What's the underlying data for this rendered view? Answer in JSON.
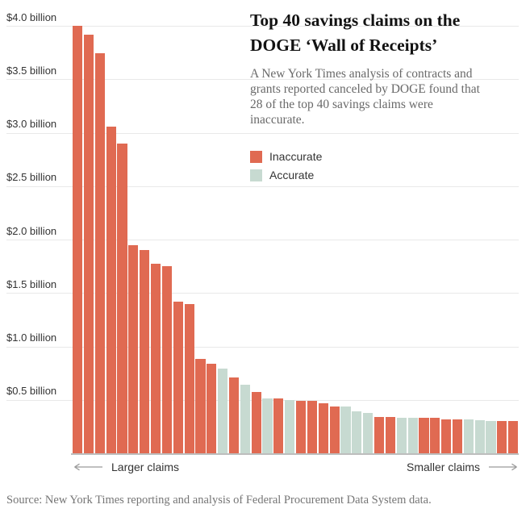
{
  "header": {
    "title_lines": [
      "Top 40 savings claims on the",
      "DOGE ‘Wall of Receipts’"
    ],
    "subtitle_lines": [
      "A New York Times analysis of contracts and",
      "grants reported canceled by DOGE found that",
      "28 of the top 40 savings claims were",
      "inaccurate."
    ]
  },
  "legend": [
    {
      "label": "Inaccurate",
      "color": "#e06a52"
    },
    {
      "label": "Accurate",
      "color": "#c7dad1"
    }
  ],
  "axis": {
    "y_ticks": [
      {
        "label": "$4.0 billion",
        "value": 4.0
      },
      {
        "label": "$3.5 billion",
        "value": 3.5
      },
      {
        "label": "$3.0 billion",
        "value": 3.0
      },
      {
        "label": "$2.5 billion",
        "value": 2.5
      },
      {
        "label": "$2.0 billion",
        "value": 2.0
      },
      {
        "label": "$1.5 billion",
        "value": 1.5
      },
      {
        "label": "$1.0 billion",
        "value": 1.0
      },
      {
        "label": "$0.5 billion",
        "value": 0.5
      }
    ],
    "x_left_label": "Larger claims",
    "x_right_label": "Smaller claims"
  },
  "source": "Source: New York Times reporting and analysis of Federal Procurement Data System data.",
  "chart_data": {
    "type": "bar",
    "title": "Top 40 savings claims on the DOGE ‘Wall of Receipts’",
    "subtitle": "A New York Times analysis of contracts and grants reported canceled by DOGE found that 28 of the top 40 savings claims were inaccurate.",
    "unit": "billions of USD (claimed savings)",
    "xlabel": "Claims ordered from larger to smaller",
    "ylabel": "Claimed savings",
    "ylim": [
      0,
      4.0
    ],
    "grid": true,
    "legend_position": "top-right",
    "colors": {
      "inaccurate": "#e06a52",
      "accurate": "#c7dad1"
    },
    "counts": {
      "inaccurate": 28,
      "accurate": 12,
      "total": 40
    },
    "bars": [
      {
        "rank": 1,
        "value": 4.0,
        "status": "inaccurate"
      },
      {
        "rank": 2,
        "value": 3.92,
        "status": "inaccurate"
      },
      {
        "rank": 3,
        "value": 3.74,
        "status": "inaccurate"
      },
      {
        "rank": 4,
        "value": 3.06,
        "status": "inaccurate"
      },
      {
        "rank": 5,
        "value": 2.9,
        "status": "inaccurate"
      },
      {
        "rank": 6,
        "value": 1.95,
        "status": "inaccurate"
      },
      {
        "rank": 7,
        "value": 1.9,
        "status": "inaccurate"
      },
      {
        "rank": 8,
        "value": 1.77,
        "status": "inaccurate"
      },
      {
        "rank": 9,
        "value": 1.75,
        "status": "inaccurate"
      },
      {
        "rank": 10,
        "value": 1.42,
        "status": "inaccurate"
      },
      {
        "rank": 11,
        "value": 1.4,
        "status": "inaccurate"
      },
      {
        "rank": 12,
        "value": 0.88,
        "status": "inaccurate"
      },
      {
        "rank": 13,
        "value": 0.84,
        "status": "inaccurate"
      },
      {
        "rank": 14,
        "value": 0.79,
        "status": "accurate"
      },
      {
        "rank": 15,
        "value": 0.71,
        "status": "inaccurate"
      },
      {
        "rank": 16,
        "value": 0.64,
        "status": "accurate"
      },
      {
        "rank": 17,
        "value": 0.57,
        "status": "inaccurate"
      },
      {
        "rank": 18,
        "value": 0.51,
        "status": "accurate"
      },
      {
        "rank": 19,
        "value": 0.51,
        "status": "inaccurate"
      },
      {
        "rank": 20,
        "value": 0.5,
        "status": "accurate"
      },
      {
        "rank": 21,
        "value": 0.49,
        "status": "inaccurate"
      },
      {
        "rank": 22,
        "value": 0.49,
        "status": "inaccurate"
      },
      {
        "rank": 23,
        "value": 0.47,
        "status": "inaccurate"
      },
      {
        "rank": 24,
        "value": 0.44,
        "status": "inaccurate"
      },
      {
        "rank": 25,
        "value": 0.44,
        "status": "accurate"
      },
      {
        "rank": 26,
        "value": 0.39,
        "status": "accurate"
      },
      {
        "rank": 27,
        "value": 0.38,
        "status": "accurate"
      },
      {
        "rank": 28,
        "value": 0.34,
        "status": "inaccurate"
      },
      {
        "rank": 29,
        "value": 0.34,
        "status": "inaccurate"
      },
      {
        "rank": 30,
        "value": 0.33,
        "status": "accurate"
      },
      {
        "rank": 31,
        "value": 0.33,
        "status": "accurate"
      },
      {
        "rank": 32,
        "value": 0.33,
        "status": "inaccurate"
      },
      {
        "rank": 33,
        "value": 0.33,
        "status": "inaccurate"
      },
      {
        "rank": 34,
        "value": 0.32,
        "status": "inaccurate"
      },
      {
        "rank": 35,
        "value": 0.32,
        "status": "inaccurate"
      },
      {
        "rank": 36,
        "value": 0.32,
        "status": "accurate"
      },
      {
        "rank": 37,
        "value": 0.31,
        "status": "accurate"
      },
      {
        "rank": 38,
        "value": 0.3,
        "status": "accurate"
      },
      {
        "rank": 39,
        "value": 0.3,
        "status": "inaccurate"
      },
      {
        "rank": 40,
        "value": 0.3,
        "status": "inaccurate"
      }
    ]
  }
}
